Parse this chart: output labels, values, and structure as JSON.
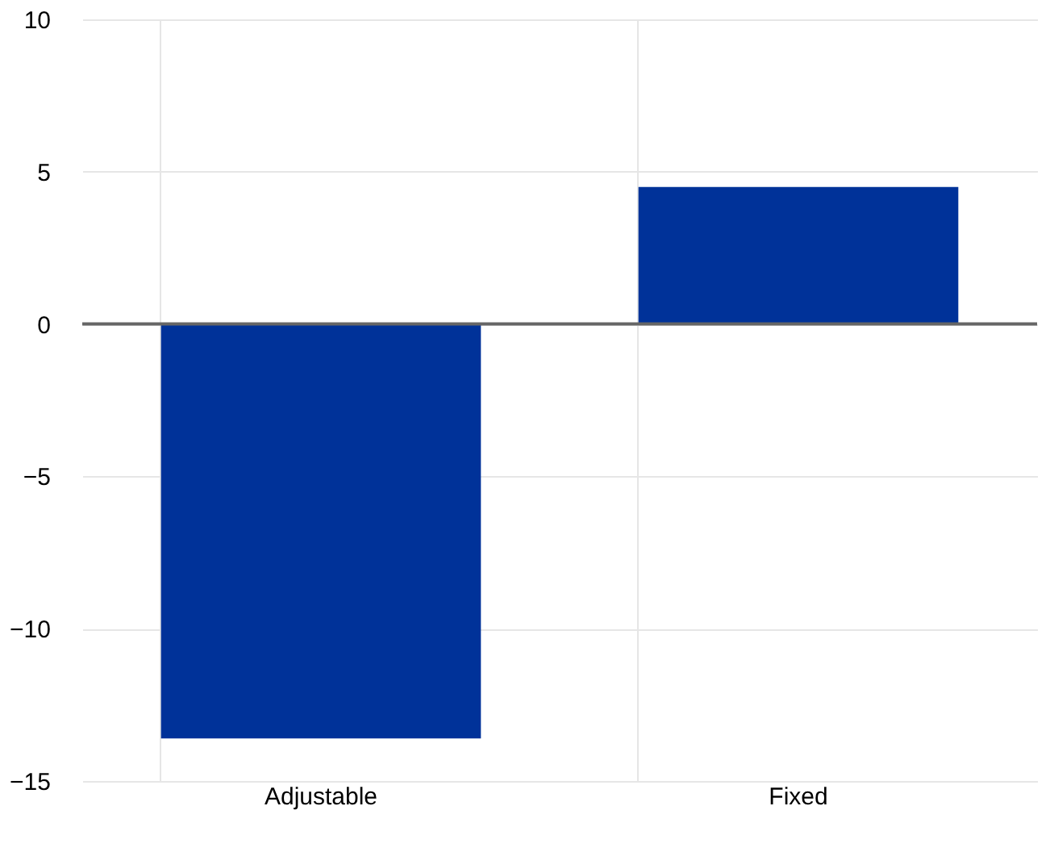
{
  "chart_data": {
    "type": "bar",
    "categories": [
      "Adjustable",
      "Fixed"
    ],
    "values": [
      -13.6,
      4.5
    ],
    "color": "#003299",
    "ylim": [
      -15,
      10
    ],
    "yticks": [
      -15,
      -10,
      -5,
      0,
      5,
      10
    ],
    "grid": true,
    "ref_lines": [
      {
        "axis": "y",
        "value": 0,
        "color": "#666666"
      }
    ]
  }
}
